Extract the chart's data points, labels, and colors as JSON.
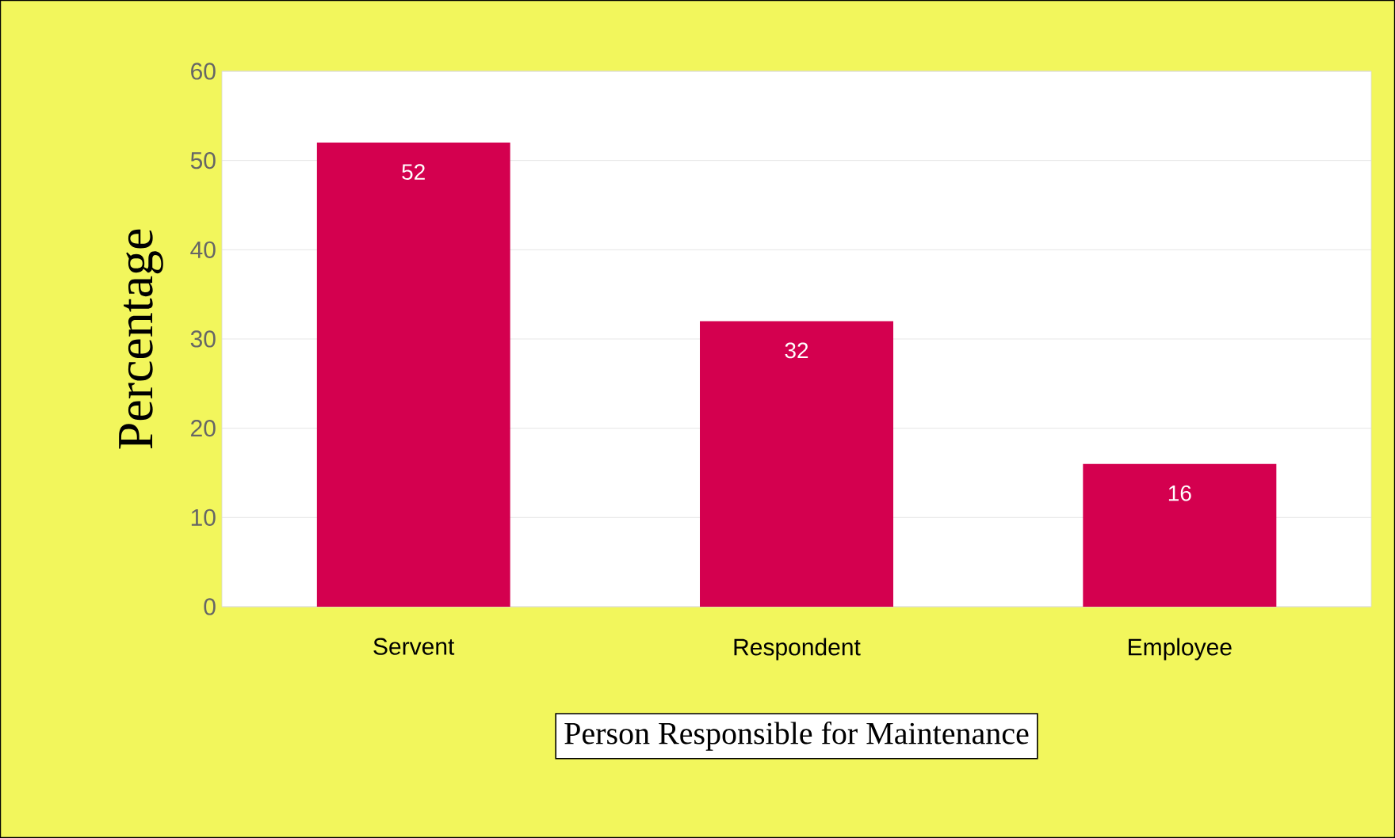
{
  "chart_data": {
    "type": "bar",
    "xlabel": "Person Responsible for Maintenance",
    "ylabel": "Percentage",
    "categories": [
      "Servent",
      "Respondent",
      "Employee"
    ],
    "values": [
      52,
      32,
      16
    ],
    "color": "#d4004f",
    "ylim": [
      0,
      60
    ],
    "yticks": [
      0,
      10,
      20,
      30,
      40,
      50,
      60
    ],
    "grid": "y",
    "data_labels": true
  }
}
